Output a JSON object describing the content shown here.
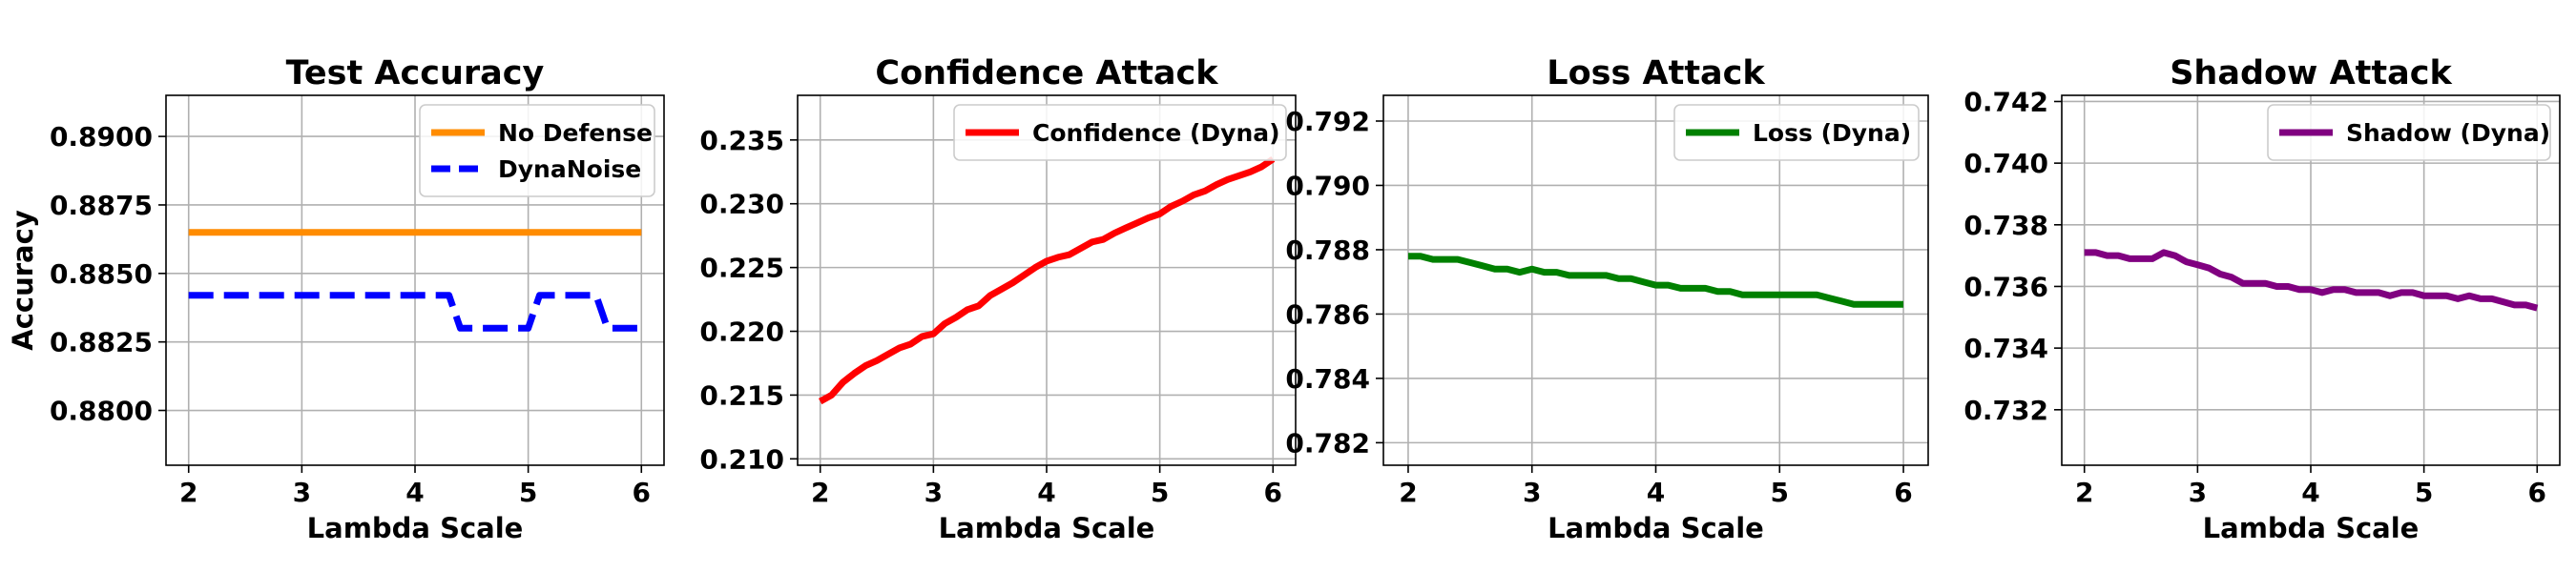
{
  "chart_data": [
    {
      "type": "line",
      "title": "Test Accuracy",
      "xlabel": "Lambda Scale",
      "ylabel": "Accuracy",
      "xlim": [
        1.8,
        6.2
      ],
      "ylim": [
        0.878,
        0.8915
      ],
      "xticks": [
        2,
        3,
        4,
        5,
        6
      ],
      "yticks": [
        0.88,
        0.8825,
        0.885,
        0.8875,
        0.89
      ],
      "ytick_labels": [
        "0.8800",
        "0.8825",
        "0.8850",
        "0.8875",
        "0.8900"
      ],
      "grid": true,
      "legend": "top-right",
      "series": [
        {
          "name": "No Defense",
          "color": "#ff8c00",
          "style": "solid",
          "x": [
            2.0,
            6.0
          ],
          "y": [
            0.8865,
            0.8865
          ]
        },
        {
          "name": "DynaNoise",
          "color": "#0000ff",
          "style": "dashed",
          "x": [
            2.0,
            2.5,
            3.0,
            3.5,
            4.0,
            4.3,
            4.4,
            4.6,
            4.8,
            5.0,
            5.1,
            5.3,
            5.5,
            5.6,
            5.7,
            5.85,
            6.0
          ],
          "y": [
            0.8842,
            0.8842,
            0.8842,
            0.8842,
            0.8842,
            0.8842,
            0.883,
            0.883,
            0.883,
            0.883,
            0.8842,
            0.8842,
            0.8842,
            0.8842,
            0.883,
            0.883,
            0.883
          ]
        }
      ]
    },
    {
      "type": "line",
      "title": "Confidence Attack",
      "xlabel": "Lambda Scale",
      "ylabel": "",
      "xlim": [
        1.8,
        6.2
      ],
      "ylim": [
        0.2095,
        0.2385
      ],
      "xticks": [
        2,
        3,
        4,
        5,
        6
      ],
      "yticks": [
        0.21,
        0.215,
        0.22,
        0.225,
        0.23,
        0.235
      ],
      "ytick_labels": [
        "0.210",
        "0.215",
        "0.220",
        "0.225",
        "0.230",
        "0.235"
      ],
      "grid": true,
      "legend": "top-right",
      "series": [
        {
          "name": "Confidence (Dyna)",
          "color": "#ff0000",
          "style": "solid",
          "x": [
            2.0,
            2.1,
            2.2,
            2.3,
            2.4,
            2.5,
            2.6,
            2.7,
            2.8,
            2.9,
            3.0,
            3.1,
            3.2,
            3.3,
            3.4,
            3.5,
            3.6,
            3.7,
            3.8,
            3.9,
            4.0,
            4.1,
            4.2,
            4.3,
            4.4,
            4.5,
            4.6,
            4.7,
            4.8,
            4.9,
            5.0,
            5.1,
            5.2,
            5.3,
            5.4,
            5.5,
            5.6,
            5.7,
            5.8,
            5.9,
            6.0
          ],
          "y": [
            0.2145,
            0.215,
            0.216,
            0.2167,
            0.2173,
            0.2177,
            0.2182,
            0.2187,
            0.219,
            0.2196,
            0.2198,
            0.2206,
            0.2211,
            0.2217,
            0.222,
            0.2228,
            0.2233,
            0.2238,
            0.2244,
            0.225,
            0.2255,
            0.2258,
            0.226,
            0.2265,
            0.227,
            0.2272,
            0.2277,
            0.2281,
            0.2285,
            0.2289,
            0.2292,
            0.2298,
            0.2302,
            0.2307,
            0.231,
            0.2315,
            0.2319,
            0.2322,
            0.2325,
            0.2329,
            0.2335
          ]
        }
      ]
    },
    {
      "type": "line",
      "title": "Loss Attack",
      "xlabel": "Lambda Scale",
      "ylabel": "",
      "xlim": [
        1.8,
        6.2
      ],
      "ylim": [
        0.7813,
        0.7928
      ],
      "xticks": [
        2,
        3,
        4,
        5,
        6
      ],
      "yticks": [
        0.782,
        0.784,
        0.786,
        0.788,
        0.79,
        0.792
      ],
      "ytick_labels": [
        "0.782",
        "0.784",
        "0.786",
        "0.788",
        "0.790",
        "0.792"
      ],
      "grid": true,
      "legend": "top-right",
      "series": [
        {
          "name": "Loss (Dyna)",
          "color": "#008000",
          "style": "solid",
          "x": [
            2.0,
            2.1,
            2.2,
            2.3,
            2.4,
            2.5,
            2.6,
            2.7,
            2.8,
            2.9,
            3.0,
            3.1,
            3.2,
            3.3,
            3.4,
            3.5,
            3.6,
            3.7,
            3.8,
            3.9,
            4.0,
            4.1,
            4.2,
            4.3,
            4.4,
            4.5,
            4.6,
            4.7,
            4.8,
            4.9,
            5.0,
            5.1,
            5.2,
            5.3,
            5.4,
            5.5,
            5.6,
            5.7,
            5.8,
            5.9,
            6.0
          ],
          "y": [
            0.7878,
            0.7878,
            0.7877,
            0.7877,
            0.7877,
            0.7876,
            0.7875,
            0.7874,
            0.7874,
            0.7873,
            0.7874,
            0.7873,
            0.7873,
            0.7872,
            0.7872,
            0.7872,
            0.7872,
            0.7871,
            0.7871,
            0.787,
            0.7869,
            0.7869,
            0.7868,
            0.7868,
            0.7868,
            0.7867,
            0.7867,
            0.7866,
            0.7866,
            0.7866,
            0.7866,
            0.7866,
            0.7866,
            0.7866,
            0.7865,
            0.7864,
            0.7863,
            0.7863,
            0.7863,
            0.7863,
            0.7863
          ]
        }
      ]
    },
    {
      "type": "line",
      "title": "Shadow Attack",
      "xlabel": "Lambda Scale",
      "ylabel": "",
      "xlim": [
        1.8,
        6.2
      ],
      "ylim": [
        0.7302,
        0.7422
      ],
      "xticks": [
        2,
        3,
        4,
        5,
        6
      ],
      "yticks": [
        0.732,
        0.734,
        0.736,
        0.738,
        0.74,
        0.742
      ],
      "ytick_labels": [
        "0.732",
        "0.734",
        "0.736",
        "0.738",
        "0.740",
        "0.742"
      ],
      "grid": true,
      "legend": "top-right",
      "series": [
        {
          "name": "Shadow (Dyna)",
          "color": "#800080",
          "style": "solid",
          "x": [
            2.0,
            2.1,
            2.2,
            2.3,
            2.4,
            2.5,
            2.6,
            2.7,
            2.8,
            2.9,
            3.0,
            3.1,
            3.2,
            3.3,
            3.4,
            3.5,
            3.6,
            3.7,
            3.8,
            3.9,
            4.0,
            4.1,
            4.2,
            4.3,
            4.4,
            4.5,
            4.6,
            4.7,
            4.8,
            4.9,
            5.0,
            5.1,
            5.2,
            5.3,
            5.4,
            5.5,
            5.6,
            5.7,
            5.8,
            5.9,
            6.0
          ],
          "y": [
            0.7371,
            0.7371,
            0.737,
            0.737,
            0.7369,
            0.7369,
            0.7369,
            0.7371,
            0.737,
            0.7368,
            0.7367,
            0.7366,
            0.7364,
            0.7363,
            0.7361,
            0.7361,
            0.7361,
            0.736,
            0.736,
            0.7359,
            0.7359,
            0.7358,
            0.7359,
            0.7359,
            0.7358,
            0.7358,
            0.7358,
            0.7357,
            0.7358,
            0.7358,
            0.7357,
            0.7357,
            0.7357,
            0.7356,
            0.7357,
            0.7356,
            0.7356,
            0.7355,
            0.7354,
            0.7354,
            0.7353
          ]
        }
      ]
    }
  ]
}
